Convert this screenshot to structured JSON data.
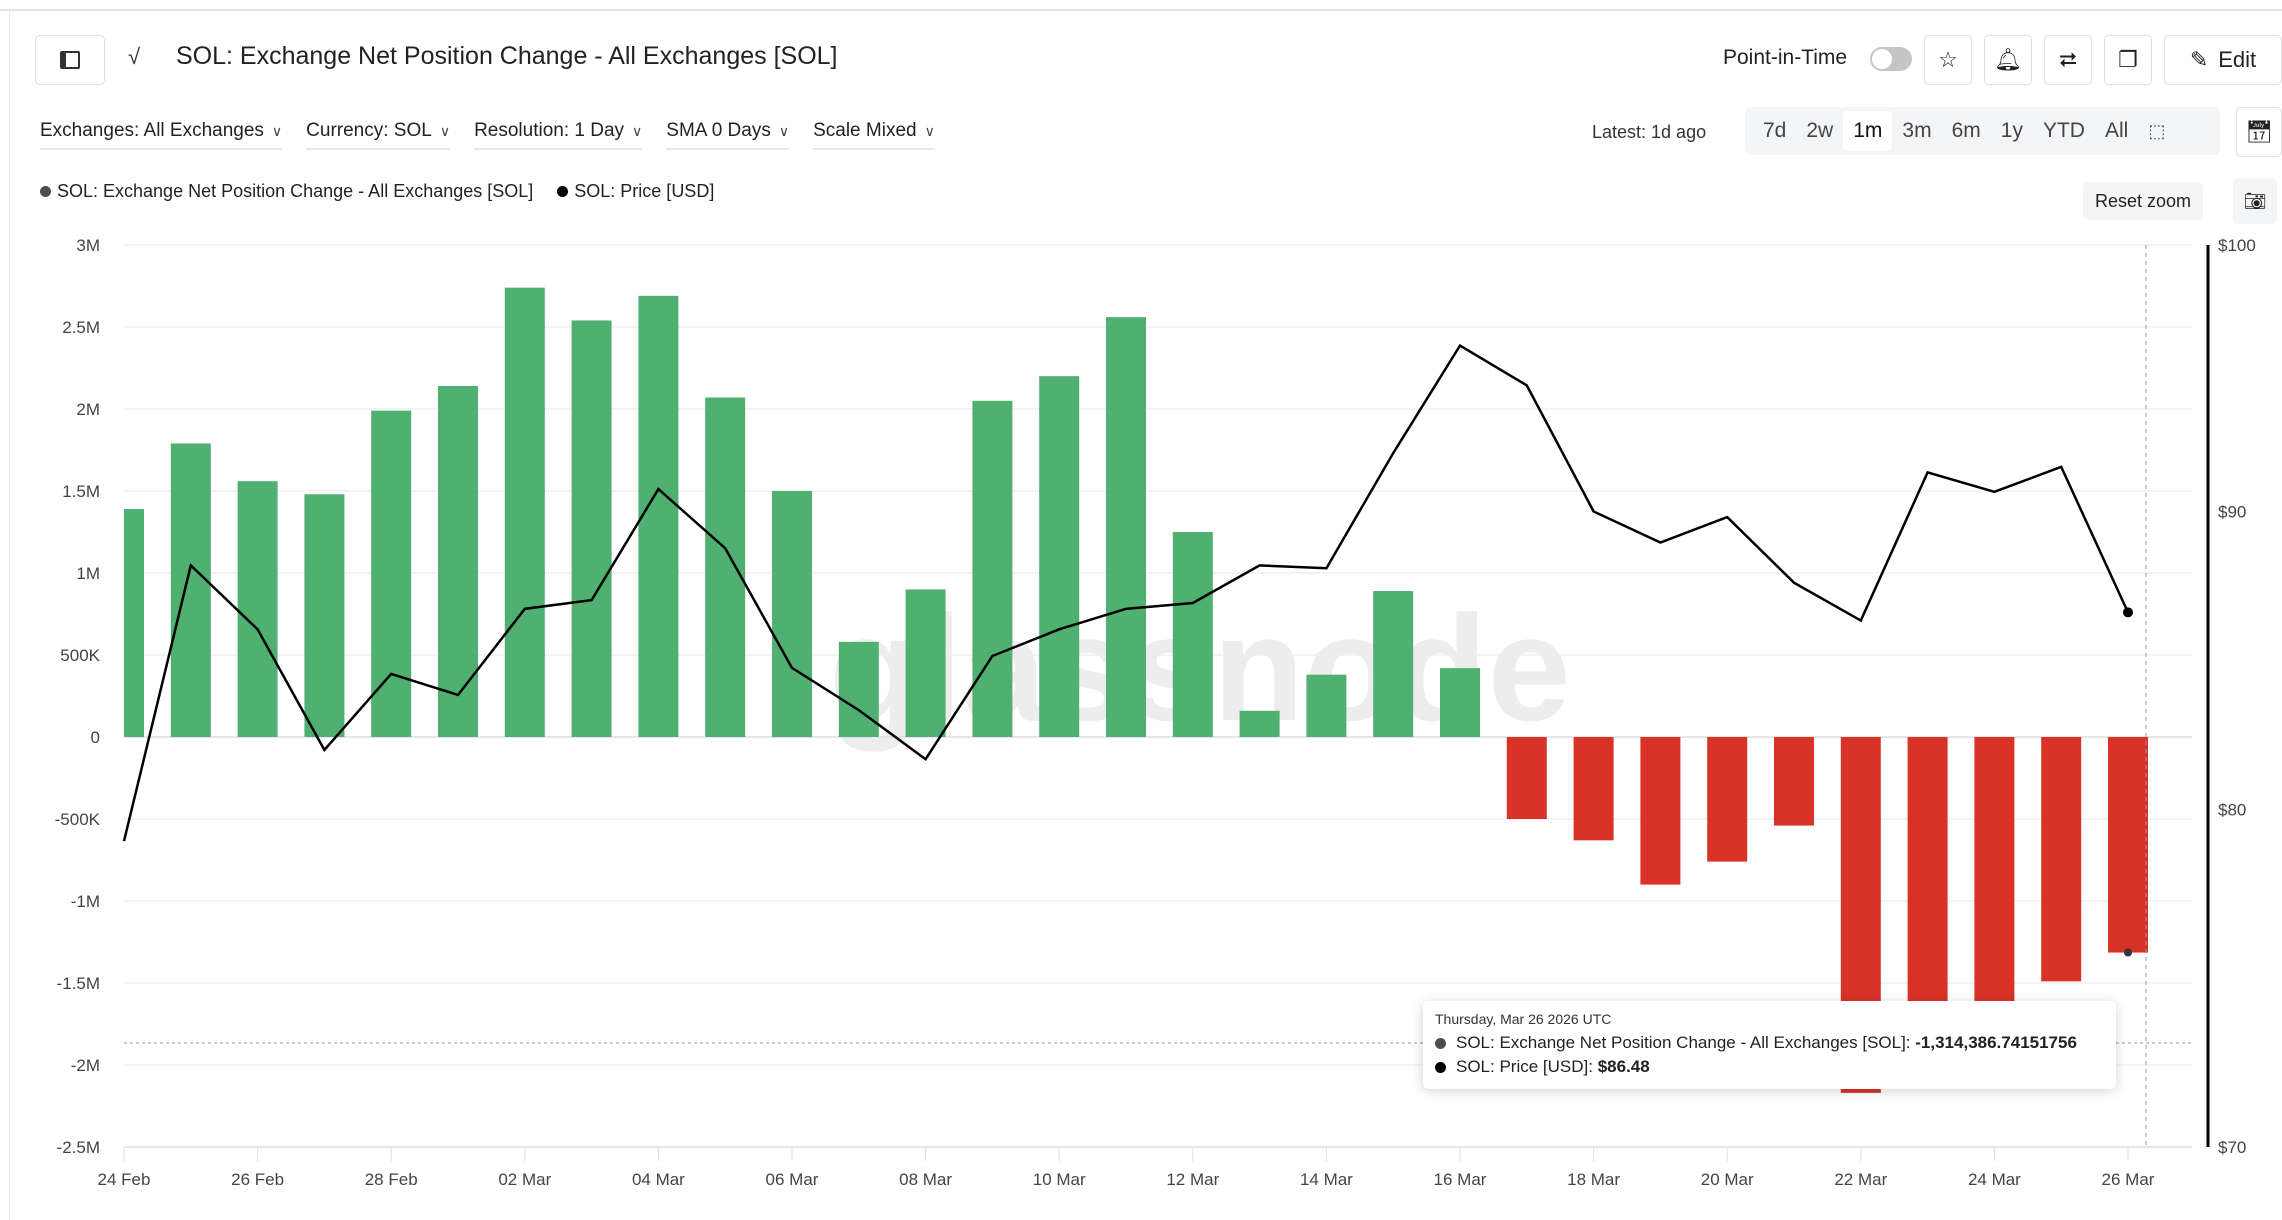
{
  "header": {
    "title": "SOL: Exchange Net Position Change - All Exchanges [SOL]",
    "point_in_time_label": "Point-in-Time",
    "point_in_time_on": false,
    "edit_label": "Edit"
  },
  "filters": [
    {
      "label": "Exchanges: All Exchanges"
    },
    {
      "label": "Currency: SOL"
    },
    {
      "label": "Resolution: 1 Day"
    },
    {
      "label": "SMA 0 Days"
    },
    {
      "label": "Scale Mixed"
    }
  ],
  "latest": "Latest: 1d ago",
  "ranges": [
    "7d",
    "2w",
    "1m",
    "3m",
    "6m",
    "1y",
    "YTD",
    "All"
  ],
  "active_range": "1m",
  "reset_zoom": "Reset zoom",
  "legend": [
    {
      "label": "SOL: Exchange Net Position Change - All Exchanges [SOL]",
      "color": "#4a4d57"
    },
    {
      "label": "SOL: Price [USD]",
      "color": "#000000"
    }
  ],
  "tooltip": {
    "date": "Thursday, Mar 26 2026 UTC",
    "rows": [
      {
        "label": "SOL: Exchange Net Position Change - All Exchanges [SOL]: ",
        "value": "-1,314,386.74151756",
        "color": "#4a4d57"
      },
      {
        "label": "SOL: Price [USD]: ",
        "value": "$86.48",
        "color": "#000000"
      }
    ]
  },
  "watermark": "glassnode",
  "chart_data": {
    "type": "bar+line",
    "x": [
      "24 Feb",
      "25 Feb",
      "26 Feb",
      "27 Feb",
      "28 Feb",
      "01 Mar",
      "02 Mar",
      "03 Mar",
      "04 Mar",
      "05 Mar",
      "06 Mar",
      "07 Mar",
      "08 Mar",
      "09 Mar",
      "10 Mar",
      "11 Mar",
      "12 Mar",
      "13 Mar",
      "14 Mar",
      "15 Mar",
      "16 Mar",
      "17 Mar",
      "18 Mar",
      "19 Mar",
      "20 Mar",
      "21 Mar",
      "22 Mar",
      "23 Mar",
      "24 Mar",
      "25 Mar",
      "26 Mar"
    ],
    "x_tick_labels": [
      "24 Feb",
      "26 Feb",
      "28 Feb",
      "02 Mar",
      "04 Mar",
      "06 Mar",
      "08 Mar",
      "10 Mar",
      "12 Mar",
      "14 Mar",
      "16 Mar",
      "18 Mar",
      "20 Mar",
      "22 Mar",
      "24 Mar",
      "26 Mar"
    ],
    "series": [
      {
        "name": "SOL: Exchange Net Position Change - All Exchanges [SOL]",
        "type": "bar",
        "axis": "left",
        "values": [
          1390000,
          1790000,
          1560000,
          1480000,
          1990000,
          2140000,
          2740000,
          2540000,
          2690000,
          2070000,
          1500000,
          580000,
          900000,
          2050000,
          2200000,
          2560000,
          1250000,
          160000,
          380000,
          890000,
          420000,
          -500000,
          -630000,
          -900000,
          -760000,
          -540000,
          -2170000,
          -2050000,
          -1900000,
          -1490000,
          -1314386.74151756
        ],
        "positive_color": "#4fb071",
        "negative_color": "#d93327"
      },
      {
        "name": "SOL: Price [USD]",
        "type": "line",
        "axis": "right",
        "color": "#000000",
        "values": [
          79.0,
          88.1,
          85.9,
          81.9,
          84.4,
          83.7,
          86.6,
          86.9,
          90.8,
          88.7,
          84.6,
          83.2,
          81.6,
          85.0,
          85.9,
          86.6,
          86.8,
          88.1,
          88.0,
          92.1,
          96.1,
          94.6,
          90.0,
          88.9,
          89.8,
          87.5,
          86.2,
          91.4,
          90.7,
          91.6,
          86.48
        ]
      }
    ],
    "left_axis": {
      "ylim": [
        -2500000,
        3000000
      ],
      "tick_labels": [
        "3M",
        "2.5M",
        "2M",
        "1.5M",
        "1M",
        "500K",
        "0",
        "-500K",
        "-1M",
        "-1.5M",
        "-2M",
        "-2.5M"
      ],
      "scale": "linear"
    },
    "right_axis": {
      "ylim": [
        70,
        100
      ],
      "tick_labels": [
        "$100",
        "$90",
        "$80",
        "$70"
      ],
      "ticks": [
        100,
        90,
        80,
        70
      ],
      "scale": "log"
    },
    "grid": true
  }
}
